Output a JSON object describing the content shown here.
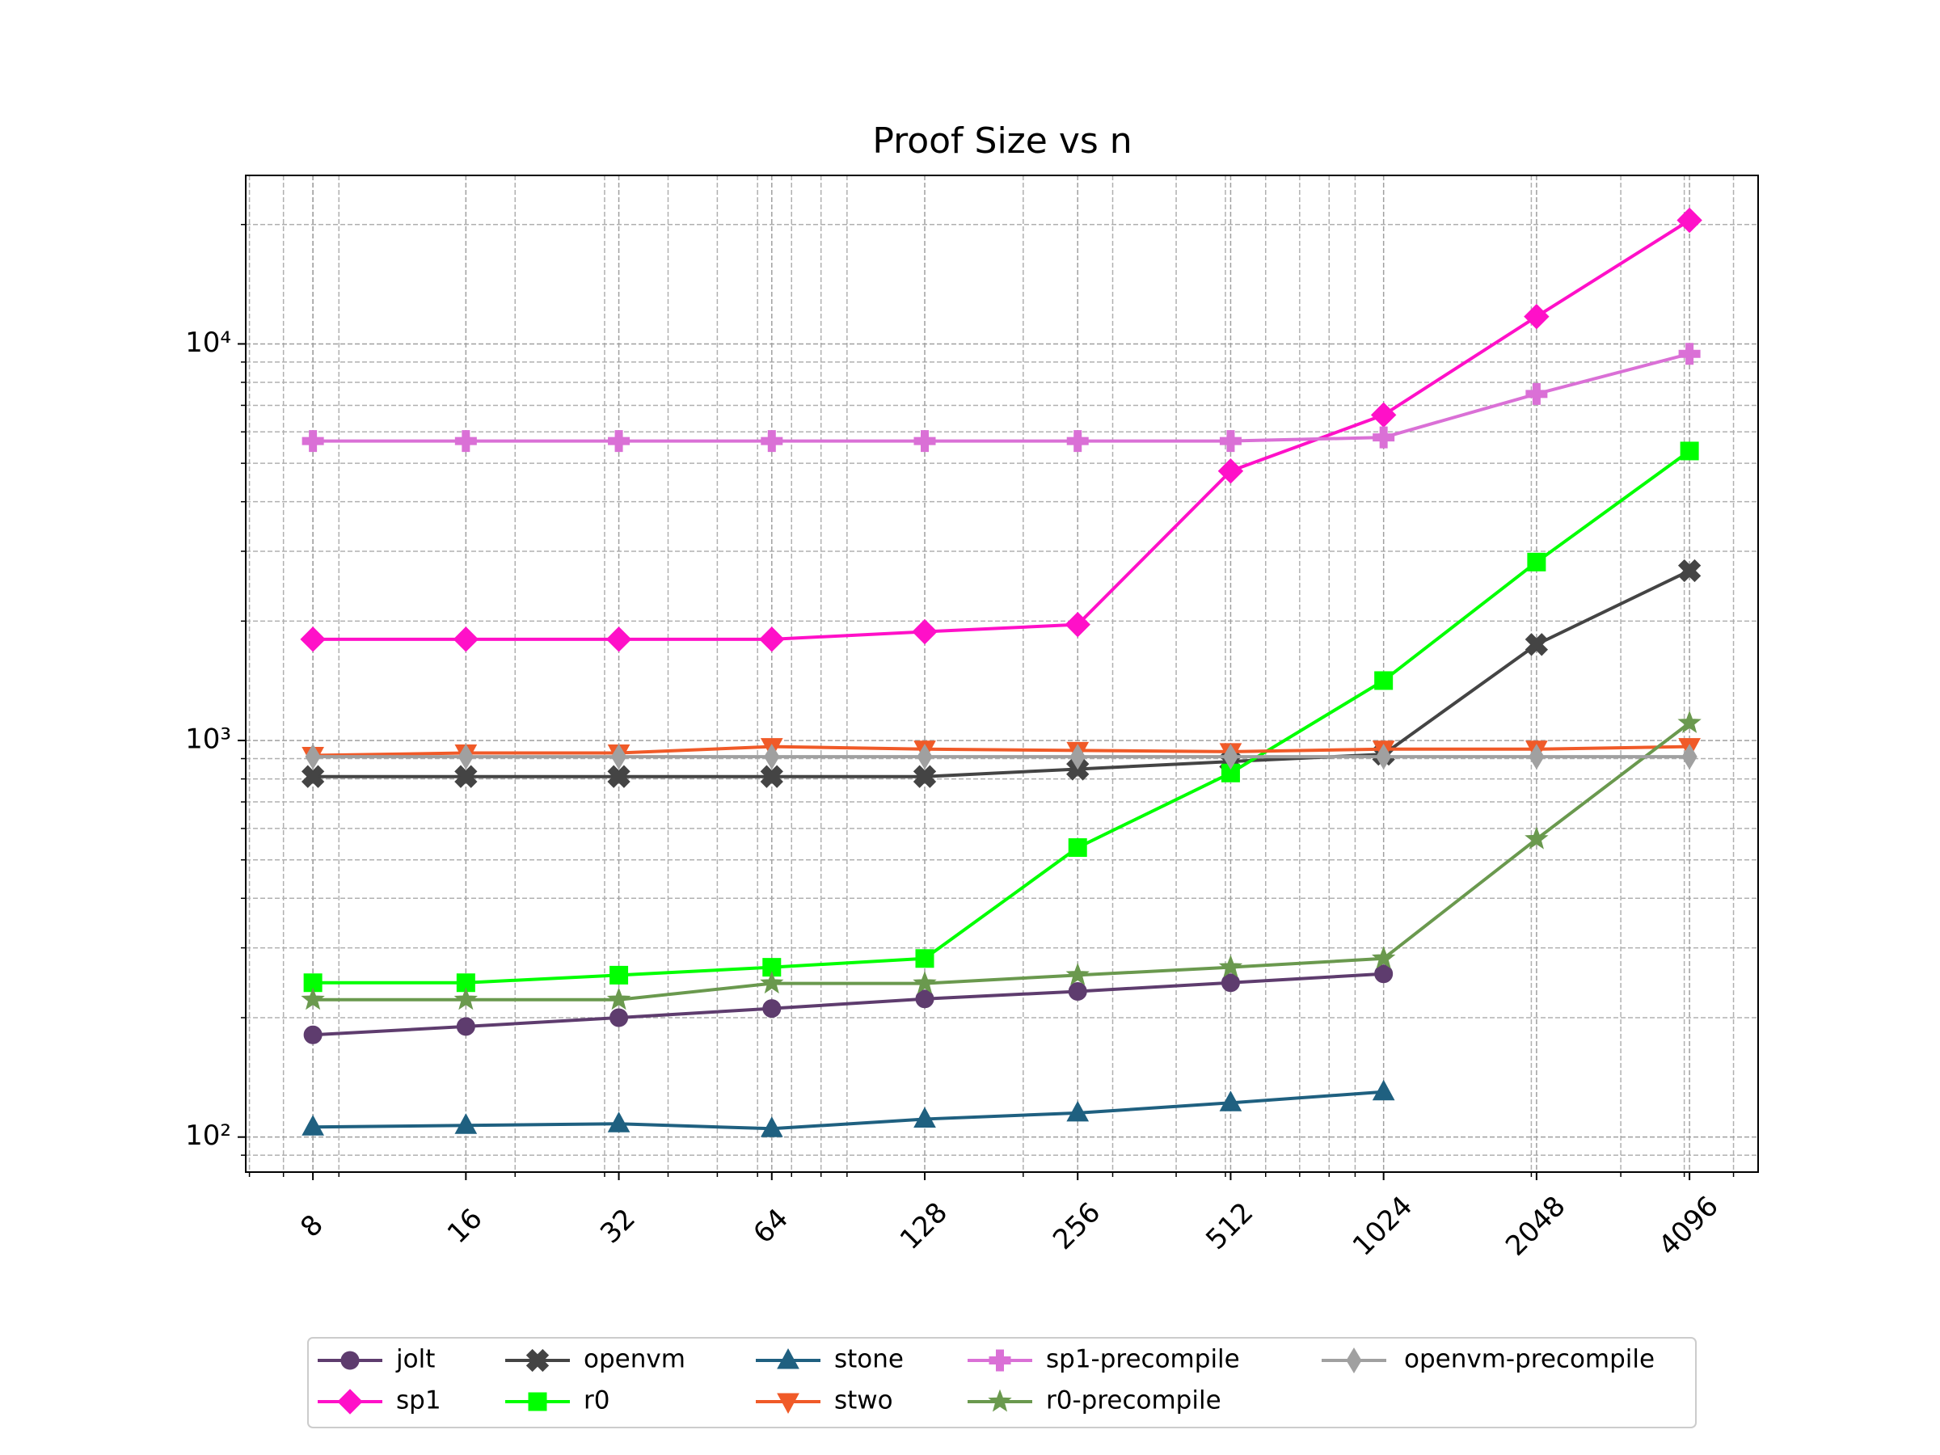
{
  "chart_data": {
    "type": "line",
    "title": "Proof Size vs n",
    "x": [
      8,
      16,
      32,
      64,
      128,
      256,
      512,
      1024,
      2048,
      4096
    ],
    "xlim": [
      5.9,
      5590
    ],
    "xticks": [
      8,
      16,
      32,
      64,
      128,
      256,
      512,
      1024,
      2048,
      4096
    ],
    "xscale": "log",
    "ylim": [
      81.6,
      26600
    ],
    "yticks": [
      {
        "value": 100,
        "label": "10²"
      },
      {
        "value": 1000,
        "label": "10³"
      },
      {
        "value": 10000,
        "label": "10⁴"
      }
    ],
    "yscale": "log",
    "grid": true,
    "legend": "bottom",
    "series": [
      {
        "name": "jolt",
        "color": "#5e3c6e",
        "marker": "circle",
        "values": [
          181,
          190,
          200,
          211,
          223,
          233,
          245,
          258,
          null,
          null
        ]
      },
      {
        "name": "sp1",
        "color": "#ff10c8",
        "marker": "diamond",
        "values": [
          1800,
          1800,
          1800,
          1800,
          1880,
          1960,
          4780,
          6620,
          11720,
          20500
        ]
      },
      {
        "name": "openvm",
        "color": "#444444",
        "marker": "x",
        "values": [
          811,
          811,
          811,
          811,
          811,
          847,
          885,
          923,
          1746,
          2680
        ]
      },
      {
        "name": "r0",
        "color": "#00ff00",
        "marker": "square",
        "values": [
          245,
          245,
          256,
          268,
          282,
          537,
          828,
          1416,
          2818,
          5370
        ]
      },
      {
        "name": "stone",
        "color": "#1f6080",
        "marker": "triangle-up",
        "values": [
          106,
          107,
          108,
          105,
          111,
          115,
          122,
          130,
          null,
          null
        ]
      },
      {
        "name": "stwo",
        "color": "#f05a28",
        "marker": "triangle-down",
        "values": [
          917,
          930,
          930,
          965,
          951,
          944,
          937,
          951,
          951,
          965
        ]
      },
      {
        "name": "sp1-precompile",
        "color": "#da70d6",
        "marker": "plus",
        "values": [
          5690,
          5690,
          5690,
          5690,
          5690,
          5690,
          5690,
          5810,
          7480,
          9440
        ]
      },
      {
        "name": "r0-precompile",
        "color": "#6a994e",
        "marker": "star",
        "values": [
          222,
          222,
          222,
          244,
          244,
          256,
          268,
          282,
          564,
          1107
        ]
      },
      {
        "name": "openvm-precompile",
        "color": "#a0a0a0",
        "marker": "thin-diamond",
        "values": [
          910,
          910,
          910,
          910,
          910,
          910,
          910,
          910,
          910,
          910
        ]
      }
    ]
  }
}
